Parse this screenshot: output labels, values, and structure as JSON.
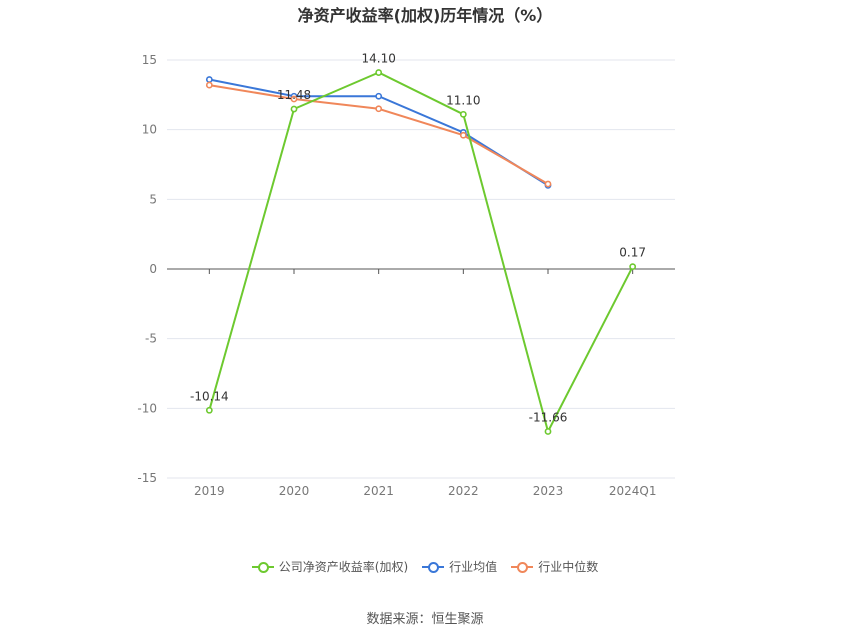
{
  "chart_data": {
    "type": "line",
    "title": "净资产收益率(加权)历年情况（%）",
    "categories": [
      "2019",
      "2020",
      "2021",
      "2022",
      "2023",
      "2024Q1"
    ],
    "ylim": [
      -15,
      15
    ],
    "yticks": [
      15,
      10,
      5,
      0,
      -5,
      -10,
      -15
    ],
    "grid": true,
    "legend_position": "bottom",
    "series": [
      {
        "name": "公司净资产收益率(加权)",
        "color": "#6dc92f",
        "values": [
          -10.14,
          11.48,
          14.1,
          11.1,
          -11.66,
          0.17
        ],
        "labels": [
          "-10.14",
          "11.48",
          "14.10",
          "11.10",
          "-11.66",
          "0.17"
        ]
      },
      {
        "name": "行业均值",
        "color": "#3a77d8",
        "values": [
          13.6,
          12.4,
          12.4,
          9.8,
          6.0,
          null
        ]
      },
      {
        "name": "行业中位数",
        "color": "#f0875a",
        "values": [
          13.2,
          12.2,
          11.5,
          9.6,
          6.1,
          null
        ]
      }
    ]
  },
  "source_text": "数据来源：恒生聚源"
}
